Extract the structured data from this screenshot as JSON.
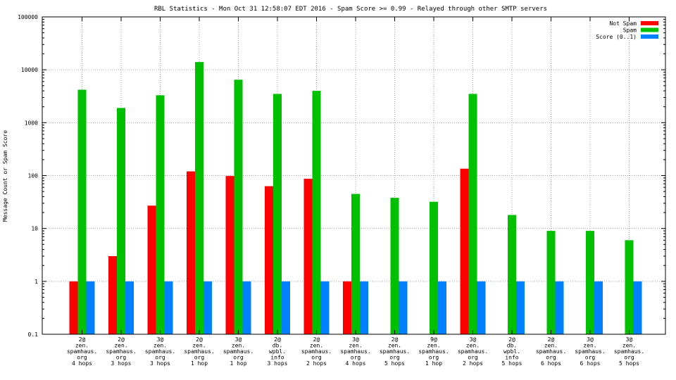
{
  "chart_data": {
    "type": "bar",
    "title": "RBL Statistics - Mon Oct 31 12:58:07 EDT 2016 - Spam Score >= 0.99 - Relayed through other SMTP servers",
    "ylabel": "Message Count or Spam Score",
    "xlabel": "",
    "yscale": "log",
    "ylim": [
      0.1,
      100000
    ],
    "yticks": [
      "0.1",
      "1",
      "10",
      "100",
      "1000",
      "10000",
      "100000"
    ],
    "grid": true,
    "legend_position": "top-right",
    "categories": [
      [
        "2@",
        "zen.",
        "spamhaus.",
        "org",
        "4 hops"
      ],
      [
        "2@",
        "zen.",
        "spamhaus.",
        "org",
        "3 hops"
      ],
      [
        "3@",
        "zen.",
        "spamhaus.",
        "org",
        "3 hops"
      ],
      [
        "2@",
        "zen.",
        "spamhaus.",
        "org",
        "1 hop"
      ],
      [
        "3@",
        "zen.",
        "spamhaus.",
        "org",
        "1 hop"
      ],
      [
        "2@",
        "db.",
        "wpbl.",
        "info",
        "3 hops"
      ],
      [
        "2@",
        "zen.",
        "spamhaus.",
        "org",
        "2 hops"
      ],
      [
        "3@",
        "zen.",
        "spamhaus.",
        "org",
        "4 hops"
      ],
      [
        "2@",
        "zen.",
        "spamhaus.",
        "org",
        "5 hops"
      ],
      [
        "9@",
        "zen.",
        "spamhaus.",
        "org",
        "1 hop"
      ],
      [
        "3@",
        "zen.",
        "spamhaus.",
        "org",
        "2 hops"
      ],
      [
        "2@",
        "db.",
        "wpbl.",
        "info",
        "5 hops"
      ],
      [
        "2@",
        "zen.",
        "spamhaus.",
        "org",
        "6 hops"
      ],
      [
        "3@",
        "zen.",
        "spamhaus.",
        "org",
        "6 hops"
      ],
      [
        "3@",
        "zen.",
        "spamhaus.",
        "org",
        "5 hops"
      ]
    ],
    "series": [
      {
        "name": "Not Spam",
        "color": "#ff0000",
        "values": [
          1,
          3,
          27,
          120,
          98,
          63,
          87,
          1,
          null,
          null,
          135,
          null,
          null,
          null,
          null
        ]
      },
      {
        "name": "Spam",
        "color": "#00c000",
        "values": [
          4200,
          1900,
          3300,
          14000,
          6500,
          3500,
          4000,
          45,
          38,
          32,
          3500,
          18,
          9,
          9,
          6
        ]
      },
      {
        "name": "Score (0..1)",
        "color": "#0080ff",
        "values": [
          1,
          1,
          1,
          1,
          1,
          1,
          1,
          1,
          1,
          1,
          1,
          1,
          1,
          1,
          1
        ]
      }
    ]
  }
}
